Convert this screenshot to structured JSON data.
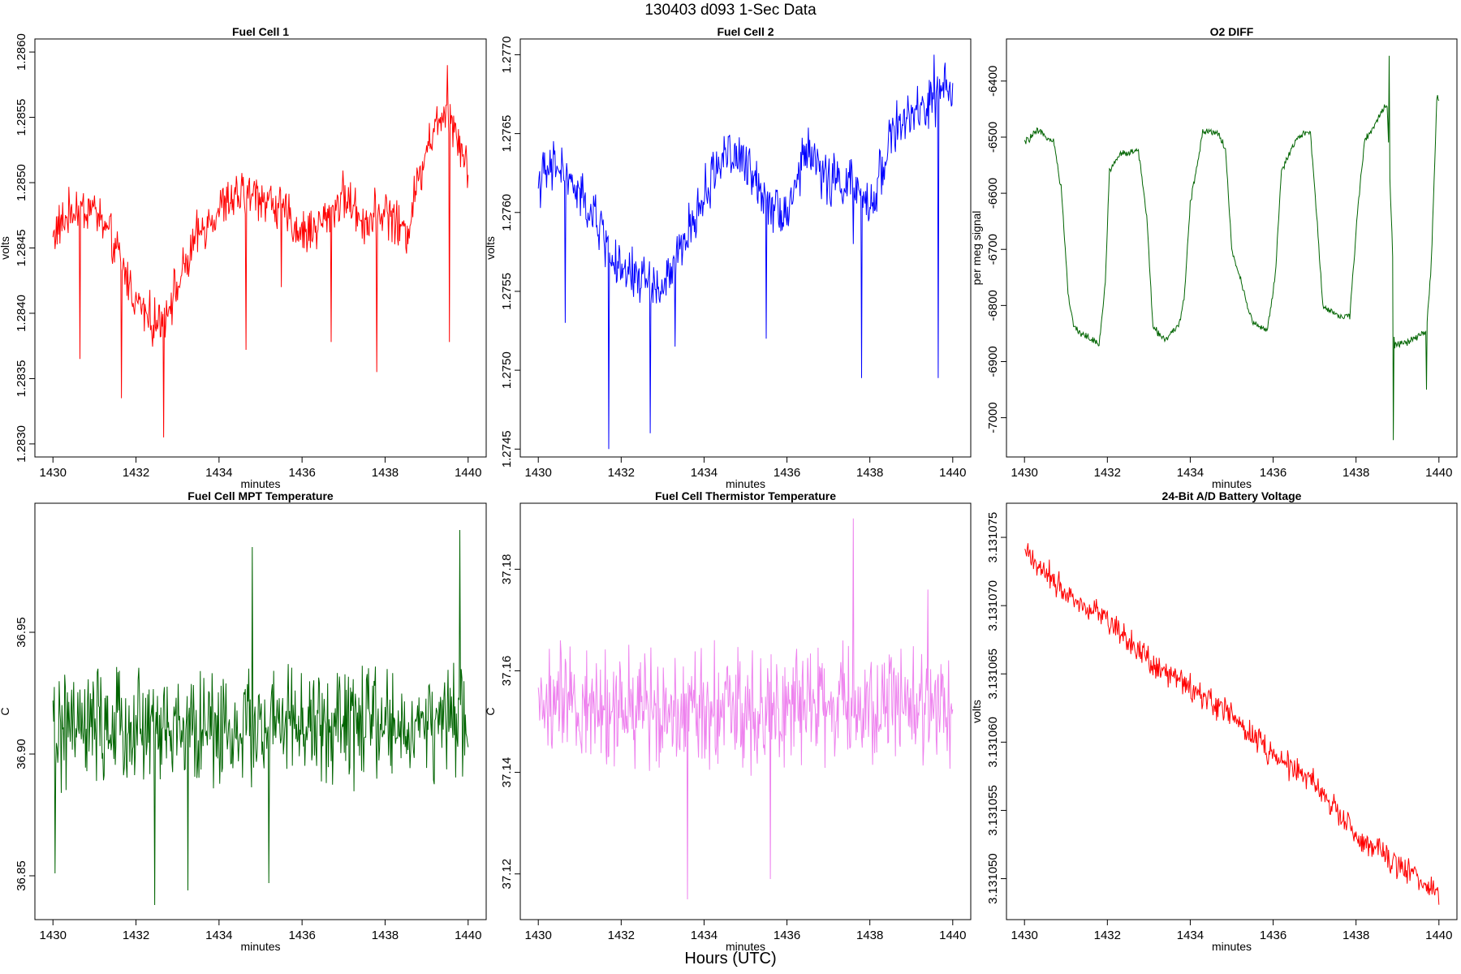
{
  "figure": {
    "title": "130403   d093   1-Sec Data",
    "bottom_label": "Hours (UTC)"
  },
  "chart_data": [
    {
      "type": "line",
      "title": "Fuel Cell 1",
      "xlabel": "minutes",
      "ylabel": "volts",
      "color": "#ff0000",
      "xlim": [
        1430,
        1440
      ],
      "xticks": [
        1430,
        1432,
        1434,
        1436,
        1438,
        1440
      ],
      "xtick_labels": [
        "1430",
        "1432",
        "1434",
        "1436",
        "1438",
        "1440"
      ],
      "ylim": [
        1.2829,
        1.2861
      ],
      "yticks": [
        1.283,
        1.2835,
        1.284,
        1.2845,
        1.285,
        1.2855,
        1.286
      ],
      "ytick_labels": [
        "1.2830",
        "1.2835",
        "1.2840",
        "1.2845",
        "1.2850",
        "1.2855",
        "1.2860"
      ],
      "series": [
        {
          "x": [
            1430,
            1430.5,
            1431,
            1431.5,
            1432,
            1432.5,
            1433,
            1433.5,
            1434,
            1434.5,
            1435,
            1435.5,
            1436,
            1436.5,
            1437,
            1437.5,
            1438,
            1438.5,
            1439,
            1439.5,
            1440
          ],
          "values": [
            1.2846,
            1.2848,
            1.2848,
            1.2845,
            1.2841,
            1.2839,
            1.2842,
            1.2846,
            1.2848,
            1.2849,
            1.2849,
            1.2848,
            1.2846,
            1.2847,
            1.2849,
            1.2847,
            1.2848,
            1.2846,
            1.2853,
            1.2856,
            1.2851
          ],
          "noise": 0.00022,
          "spikes": [
            {
              "x": 1430.65,
              "y": 1.28365
            },
            {
              "x": 1431.65,
              "y": 1.28335
            },
            {
              "x": 1432.67,
              "y": 1.28305
            },
            {
              "x": 1434.65,
              "y": 1.28372
            },
            {
              "x": 1435.5,
              "y": 1.2842
            },
            {
              "x": 1436.7,
              "y": 1.28378
            },
            {
              "x": 1437.8,
              "y": 1.28355
            },
            {
              "x": 1439.55,
              "y": 1.28378
            },
            {
              "x": 1439.5,
              "y": 1.2859
            }
          ]
        }
      ]
    },
    {
      "type": "line",
      "title": "Fuel Cell 2",
      "xlabel": "minutes",
      "ylabel": "volts",
      "color": "#0000ff",
      "xlim": [
        1430,
        1440
      ],
      "xticks": [
        1430,
        1432,
        1434,
        1436,
        1438,
        1440
      ],
      "xtick_labels": [
        "1430",
        "1432",
        "1434",
        "1436",
        "1438",
        "1440"
      ],
      "ylim": [
        1.27445,
        1.2771
      ],
      "yticks": [
        1.2745,
        1.275,
        1.2755,
        1.276,
        1.2765,
        1.277
      ],
      "ytick_labels": [
        "1.2745",
        "1.2750",
        "1.2755",
        "1.2760",
        "1.2765",
        "1.2770"
      ],
      "series": [
        {
          "x": [
            1430,
            1430.5,
            1431,
            1431.5,
            1432,
            1432.5,
            1433,
            1433.5,
            1434,
            1434.5,
            1435,
            1435.5,
            1436,
            1436.5,
            1437,
            1437.5,
            1438,
            1438.5,
            1439,
            1439.5,
            1440
          ],
          "values": [
            1.2762,
            1.2763,
            1.2761,
            1.2759,
            1.2756,
            1.2756,
            1.2755,
            1.2758,
            1.2761,
            1.2764,
            1.2763,
            1.2761,
            1.276,
            1.2764,
            1.2762,
            1.2762,
            1.276,
            1.2765,
            1.2766,
            1.2767,
            1.2768
          ],
          "noise": 0.0002,
          "spikes": [
            {
              "x": 1430.65,
              "y": 1.2753
            },
            {
              "x": 1431.7,
              "y": 1.2745
            },
            {
              "x": 1432.7,
              "y": 1.2746
            },
            {
              "x": 1433.3,
              "y": 1.27515
            },
            {
              "x": 1435.5,
              "y": 1.2752
            },
            {
              "x": 1437.6,
              "y": 1.2758
            },
            {
              "x": 1437.8,
              "y": 1.27495
            },
            {
              "x": 1439.65,
              "y": 1.27495
            },
            {
              "x": 1439.55,
              "y": 1.277
            }
          ]
        }
      ]
    },
    {
      "type": "line",
      "title": "O2 DIFF",
      "xlabel": "minutes",
      "ylabel": "per meg signal",
      "color": "#006400",
      "xlim": [
        1430,
        1440
      ],
      "xticks": [
        1430,
        1432,
        1434,
        1436,
        1438,
        1440
      ],
      "xtick_labels": [
        "1430",
        "1432",
        "1434",
        "1436",
        "1438",
        "1440"
      ],
      "ylim": [
        -7070,
        -6325
      ],
      "yticks": [
        -7000,
        -6900,
        -6800,
        -6700,
        -6600,
        -6500,
        -6400
      ],
      "ytick_labels": [
        "-7000",
        "-6900",
        "-6800",
        "-6700",
        "-6600",
        "-6500",
        "-6400"
      ],
      "series": [
        {
          "x": [
            1430,
            1430.3,
            1430.7,
            1430.9,
            1431.05,
            1431.2,
            1431.5,
            1431.8,
            1431.95,
            1432.05,
            1432.3,
            1432.75,
            1432.95,
            1433.1,
            1433.4,
            1433.7,
            1433.85,
            1434,
            1434.3,
            1434.65,
            1434.85,
            1435,
            1435.5,
            1435.85,
            1436.05,
            1436.2,
            1436.6,
            1436.9,
            1437.05,
            1437.2,
            1437.6,
            1437.85,
            1438.05,
            1438.2,
            1438.5,
            1438.75,
            1438.88,
            1438.92,
            1439.3,
            1439.7,
            1439.82,
            1439.95
          ],
          "values": [
            -6510,
            -6490,
            -6505,
            -6600,
            -6780,
            -6840,
            -6855,
            -6870,
            -6760,
            -6560,
            -6530,
            -6525,
            -6640,
            -6840,
            -6860,
            -6840,
            -6790,
            -6620,
            -6490,
            -6490,
            -6520,
            -6700,
            -6830,
            -6845,
            -6750,
            -6560,
            -6500,
            -6490,
            -6640,
            -6800,
            -6820,
            -6820,
            -6620,
            -6510,
            -6470,
            -6440,
            -6700,
            -6870,
            -6865,
            -6845,
            -6720,
            -6430
          ],
          "noise": 8,
          "spikes": [
            {
              "x": 1438.8,
              "y": -6355
            },
            {
              "x": 1438.9,
              "y": -7040
            },
            {
              "x": 1439.7,
              "y": -6950
            }
          ]
        }
      ]
    },
    {
      "type": "line",
      "title": "Fuel Cell MPT Temperature",
      "xlabel": "minutes",
      "ylabel": "C",
      "color": "#006400",
      "xlim": [
        1430,
        1440
      ],
      "xticks": [
        1430,
        1432,
        1434,
        1436,
        1438,
        1440
      ],
      "xtick_labels": [
        "1430",
        "1432",
        "1434",
        "1436",
        "1438",
        "1440"
      ],
      "ylim": [
        36.832,
        37.003
      ],
      "yticks": [
        36.85,
        36.9,
        36.95
      ],
      "ytick_labels": [
        "36.85",
        "36.90",
        "36.95"
      ],
      "series": [
        {
          "x": [
            1430,
            1440
          ],
          "values": [
            36.91,
            36.912
          ],
          "noise": 0.028,
          "spikes": [
            {
              "x": 1430.05,
              "y": 36.851
            },
            {
              "x": 1432.45,
              "y": 36.838
            },
            {
              "x": 1433.25,
              "y": 36.844
            },
            {
              "x": 1434.8,
              "y": 36.985
            },
            {
              "x": 1435.2,
              "y": 36.847
            },
            {
              "x": 1439.8,
              "y": 36.992
            }
          ]
        }
      ]
    },
    {
      "type": "line",
      "title": "Fuel Cell Thermistor Temperature",
      "xlabel": "minutes",
      "ylabel": "C",
      "color": "#ee82ee",
      "xlim": [
        1430,
        1440
      ],
      "xticks": [
        1430,
        1432,
        1434,
        1436,
        1438,
        1440
      ],
      "xtick_labels": [
        "1430",
        "1432",
        "1434",
        "1436",
        "1438",
        "1440"
      ],
      "ylim": [
        37.111,
        37.193
      ],
      "yticks": [
        37.12,
        37.14,
        37.16,
        37.18
      ],
      "ytick_labels": [
        "37.12",
        "37.14",
        "37.16",
        "37.18"
      ],
      "series": [
        {
          "x": [
            1430,
            1440
          ],
          "values": [
            37.153,
            37.153
          ],
          "noise": 0.014,
          "spikes": [
            {
              "x": 1433.6,
              "y": 37.115
            },
            {
              "x": 1435.6,
              "y": 37.119
            },
            {
              "x": 1437.6,
              "y": 37.19
            },
            {
              "x": 1439.4,
              "y": 37.176
            }
          ]
        }
      ]
    },
    {
      "type": "line",
      "title": "24-Bit A/D Battery Voltage",
      "xlabel": "minutes",
      "ylabel": "volts",
      "color": "#ff0000",
      "xlim": [
        1430,
        1440
      ],
      "xticks": [
        1430,
        1432,
        1434,
        1436,
        1438,
        1440
      ],
      "xtick_labels": [
        "1430",
        "1432",
        "1434",
        "1436",
        "1438",
        "1440"
      ],
      "ylim": [
        3.131047,
        3.1310775
      ],
      "yticks": [
        3.13105,
        3.131055,
        3.13106,
        3.131065,
        3.13107,
        3.131075
      ],
      "ytick_labels": [
        "3.131050",
        "3.131055",
        "3.131060",
        "3.131065",
        "3.131070",
        "3.131075"
      ],
      "series": [
        {
          "x": [
            1430,
            1431,
            1432,
            1433,
            1434,
            1435,
            1436,
            1437,
            1438,
            1439,
            1440
          ],
          "values": [
            3.131074,
            3.131071,
            3.131069,
            3.131066,
            3.131064,
            3.131062,
            3.131059,
            3.131057,
            3.131053,
            3.131051,
            3.131049
          ],
          "noise": 1.2e-06
        }
      ]
    }
  ]
}
